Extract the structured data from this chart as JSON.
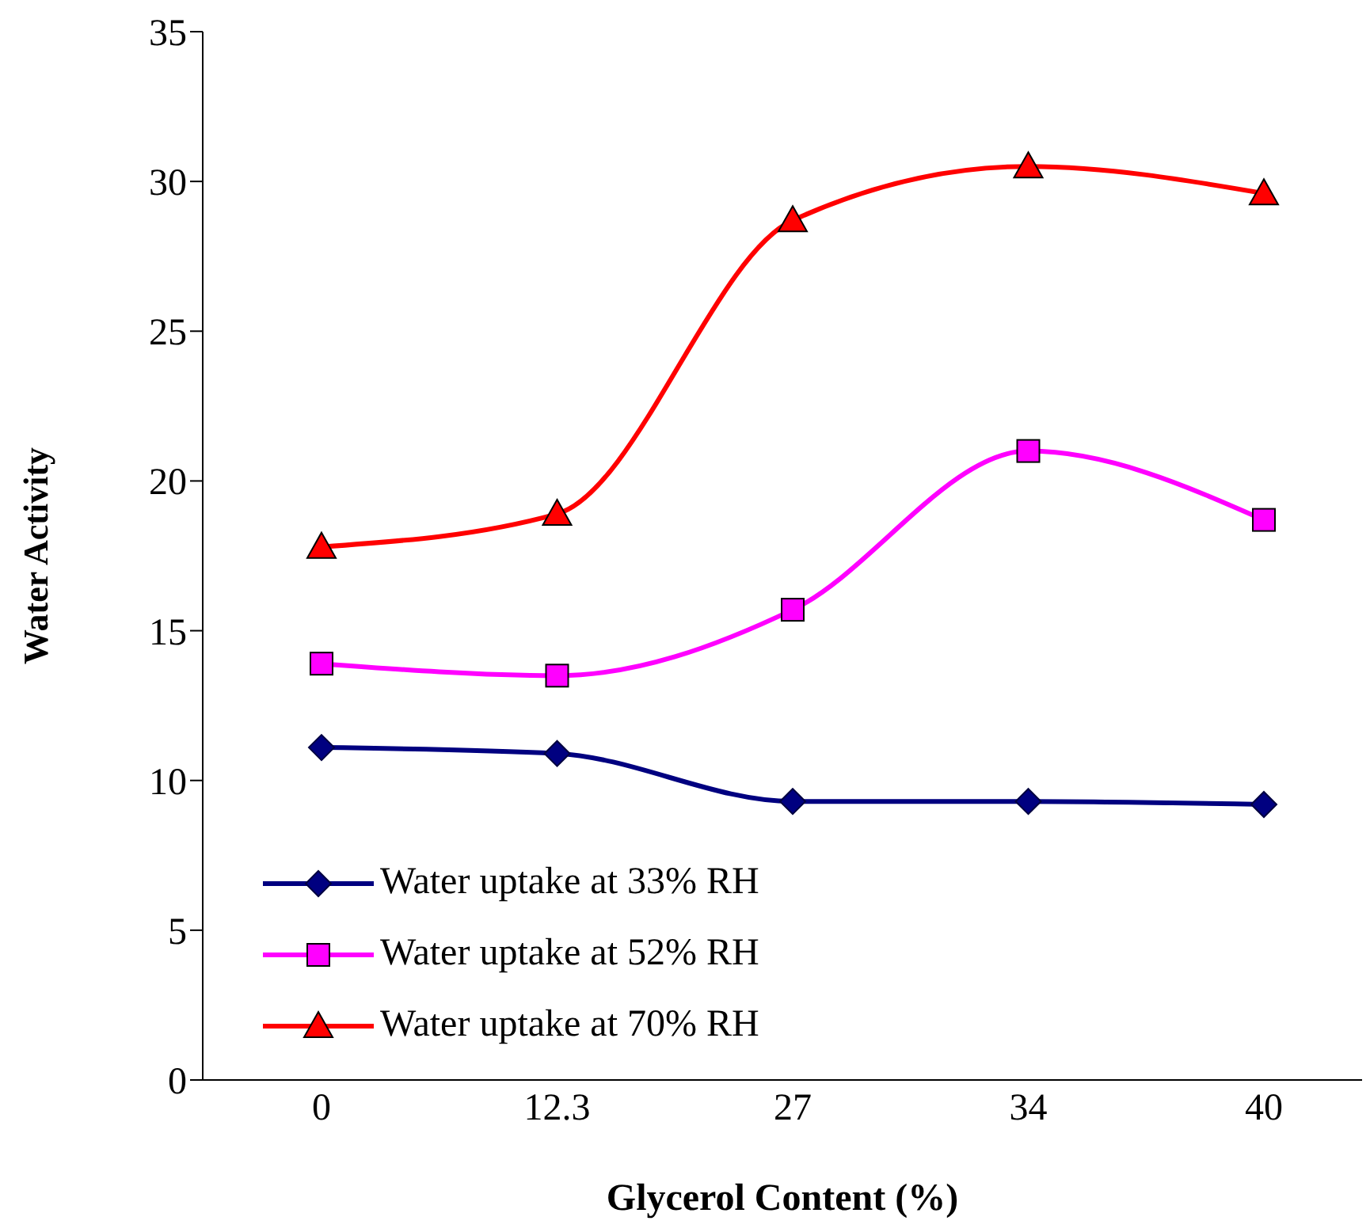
{
  "chart_data": {
    "type": "line",
    "xlabel": "Glycerol Content (%)",
    "ylabel": "Water Activity",
    "categories": [
      "0",
      "12.3",
      "27",
      "34",
      "40"
    ],
    "ylim": [
      0,
      35
    ],
    "yticks": [
      0,
      5,
      10,
      15,
      20,
      25,
      30,
      35
    ],
    "grid": false,
    "legend": "bottom left",
    "series": [
      {
        "name": "Water uptake at 33% RH",
        "color": "#000080",
        "marker": "diamond",
        "values": [
          11.1,
          10.9,
          9.3,
          9.3,
          9.2
        ]
      },
      {
        "name": "Water uptake at 52% RH",
        "color": "#ff00ff",
        "marker": "square",
        "values": [
          13.9,
          13.5,
          15.7,
          21.0,
          18.7
        ]
      },
      {
        "name": "Water uptake at 70% RH",
        "color": "#ff0000",
        "marker": "triangle",
        "values": [
          17.8,
          18.9,
          28.7,
          30.5,
          29.6
        ]
      }
    ]
  }
}
